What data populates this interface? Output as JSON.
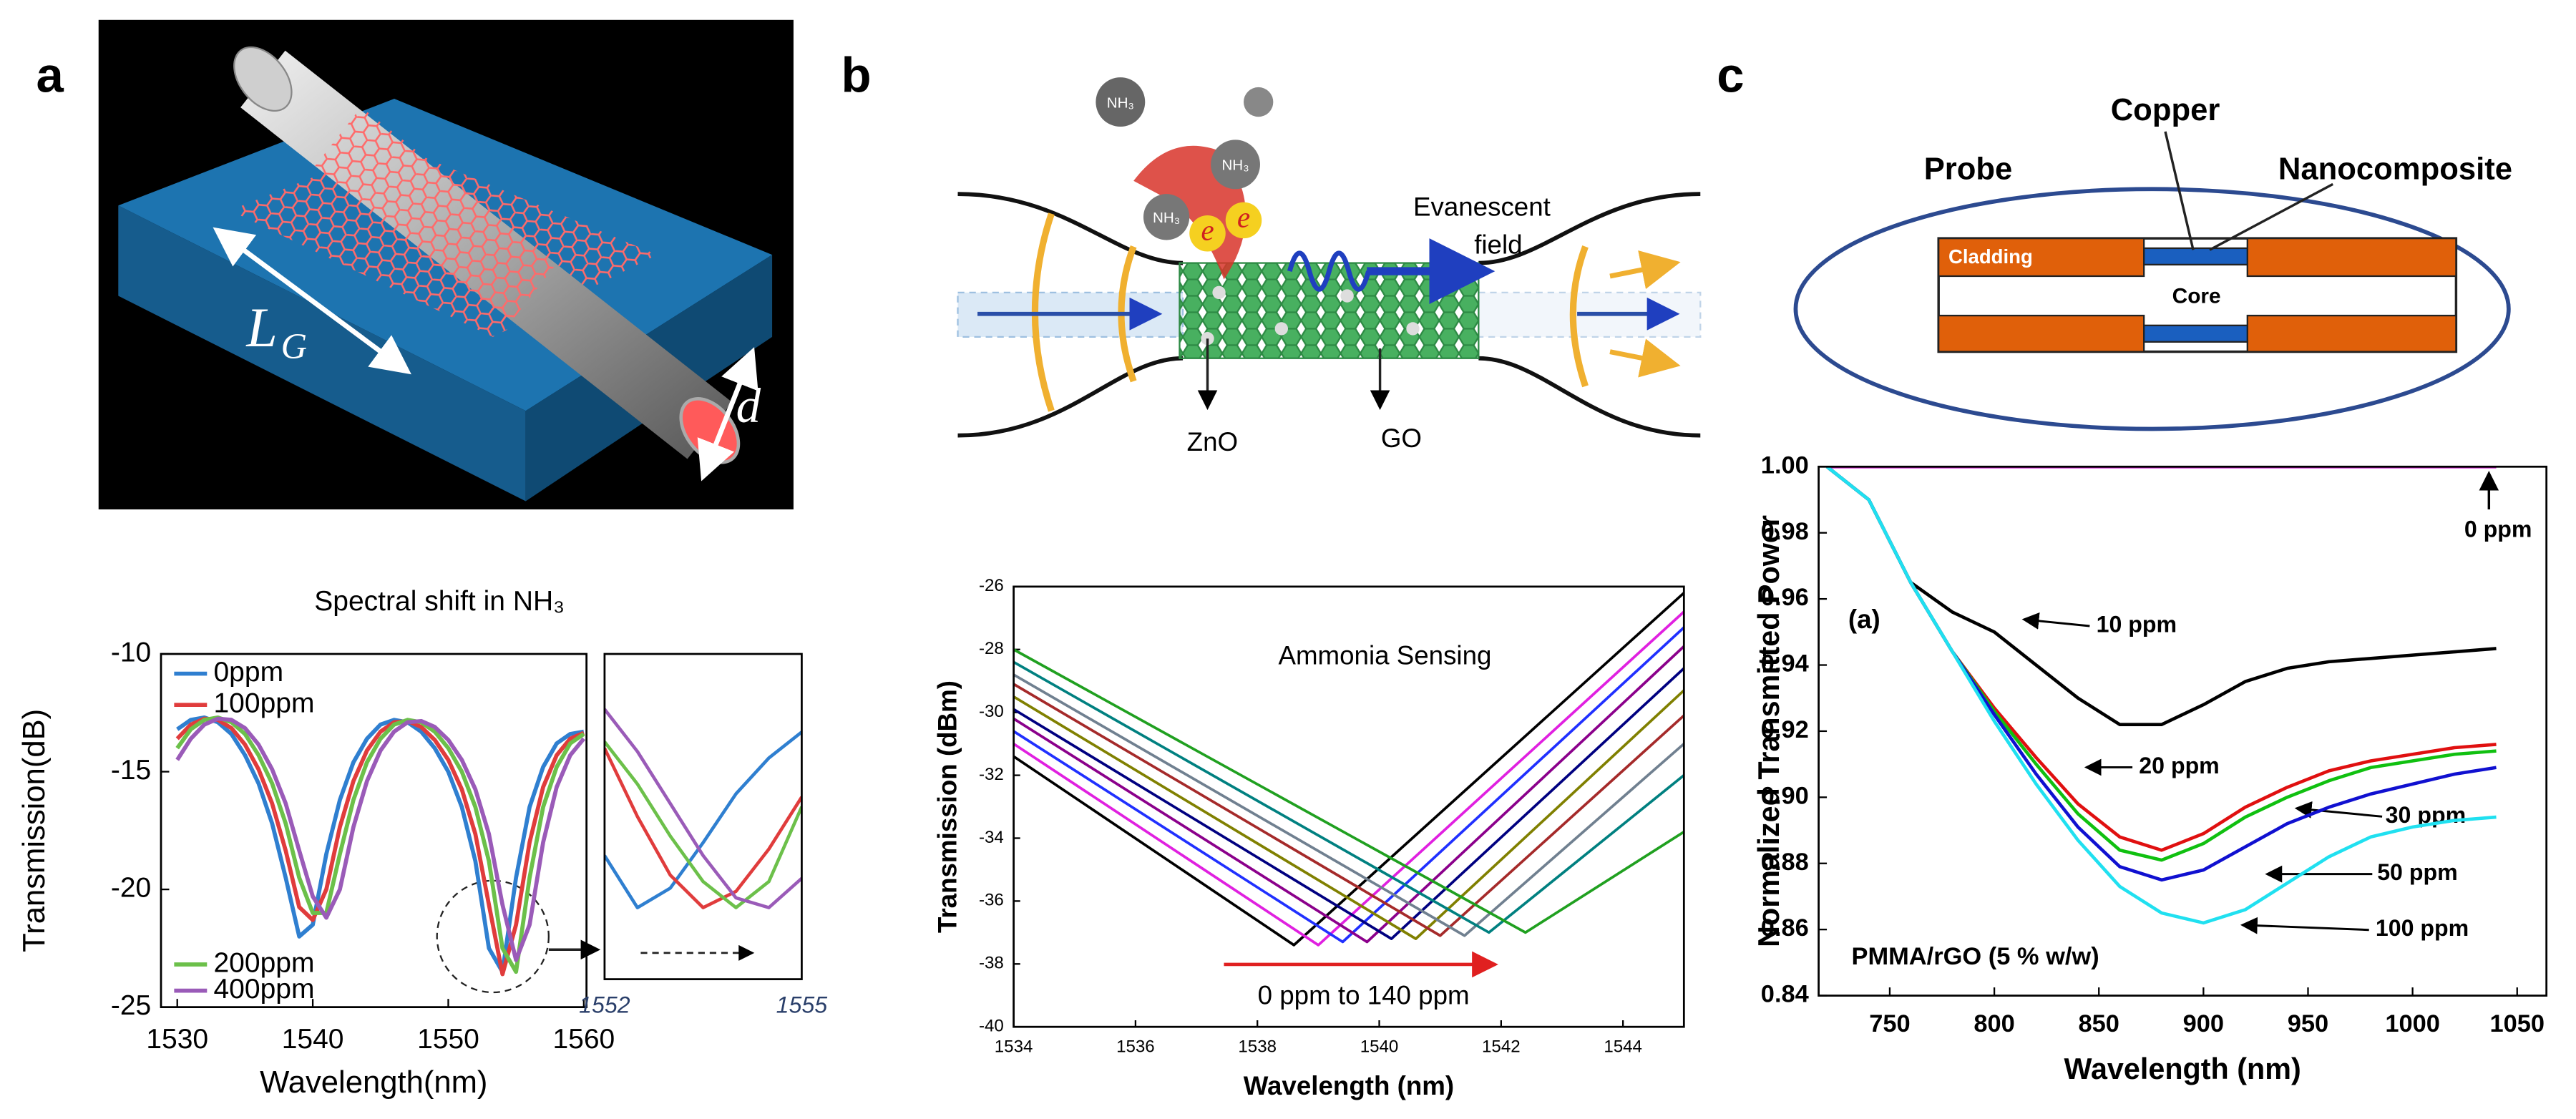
{
  "panel_labels": [
    "a",
    "b",
    "c"
  ],
  "diagram_a": {
    "length_label": "L",
    "length_subscript": "G",
    "diameter_label": "d"
  },
  "diagram_b": {
    "molecule_labels": [
      "NH₃",
      "NH₃",
      "NH₃"
    ],
    "electron_labels": [
      "e",
      "e"
    ],
    "field_label": [
      "Evanescent",
      "field"
    ],
    "zno_label": "ZnO",
    "go_label": "GO"
  },
  "diagram_c": {
    "probe": "Probe",
    "copper": "Copper",
    "nanocomposite": "Nanocomposite",
    "cladding": "Cladding",
    "core": "Core"
  },
  "chart_data": [
    {
      "type": "line",
      "title": "Spectral shift in NH₃",
      "x_label": "Wavelength(nm)",
      "y_label": "Transmission(dB)",
      "x": [
        1530,
        1531,
        1532,
        1533,
        1534,
        1535,
        1536,
        1537,
        1538,
        1539,
        1540,
        1541,
        1542,
        1543,
        1544,
        1545,
        1546,
        1547,
        1548,
        1549,
        1550,
        1551,
        1552,
        1553,
        1554,
        1555,
        1556,
        1557,
        1558,
        1559,
        1560
      ],
      "series": [
        {
          "name": "0ppm",
          "color": "#2f7fd0",
          "values": [
            -13.2,
            -12.8,
            -12.7,
            -12.9,
            -13.4,
            -14.3,
            -15.5,
            -17.2,
            -19.5,
            -22.0,
            -21.5,
            -18.5,
            -16.2,
            -14.6,
            -13.6,
            -13.0,
            -12.8,
            -12.9,
            -13.3,
            -14.0,
            -15.0,
            -16.5,
            -18.8,
            -22.5,
            -23.5,
            -19.5,
            -16.5,
            -14.8,
            -13.8,
            -13.4,
            -13.3
          ]
        },
        {
          "name": "100ppm",
          "color": "#e03c3c",
          "values": [
            -13.6,
            -13.0,
            -12.75,
            -12.8,
            -13.15,
            -13.85,
            -14.9,
            -16.35,
            -18.35,
            -20.75,
            -21.3,
            -20.0,
            -17.35,
            -15.4,
            -14.1,
            -13.3,
            -12.9,
            -12.85,
            -13.1,
            -13.65,
            -14.5,
            -15.75,
            -17.65,
            -20.65,
            -23.6,
            -21.5,
            -18.0,
            -15.65,
            -14.3,
            -13.6,
            -13.35
          ]
        },
        {
          "name": "200ppm",
          "color": "#6cc04a",
          "values": [
            -14.0,
            -13.2,
            -12.8,
            -12.7,
            -12.9,
            -13.4,
            -14.3,
            -15.5,
            -17.2,
            -19.5,
            -21.0,
            -21.0,
            -18.5,
            -16.2,
            -14.6,
            -13.6,
            -13.0,
            -12.8,
            -12.9,
            -13.3,
            -14.0,
            -15.0,
            -16.5,
            -18.8,
            -22.5,
            -23.5,
            -19.5,
            -16.5,
            -14.8,
            -13.8,
            -13.4
          ]
        },
        {
          "name": "400ppm",
          "color": "#9a5bb8",
          "values": [
            -14.5,
            -13.6,
            -13.0,
            -12.75,
            -12.8,
            -13.15,
            -13.85,
            -14.9,
            -16.35,
            -18.35,
            -20.3,
            -21.2,
            -20.0,
            -17.35,
            -15.4,
            -14.1,
            -13.3,
            -12.9,
            -12.85,
            -13.1,
            -13.65,
            -14.5,
            -15.75,
            -17.65,
            -20.65,
            -23.0,
            -21.5,
            -18.0,
            -15.65,
            -14.3,
            -13.6
          ]
        }
      ],
      "xlim": [
        1528.8,
        1560.2
      ],
      "xticks": [
        1530,
        1540,
        1550,
        1560
      ],
      "ylim": [
        -25,
        -10
      ],
      "yticks": [
        -10,
        -15,
        -20,
        -25
      ],
      "grid": false
    },
    {
      "type": "line",
      "x": [
        1552,
        1552.5,
        1553,
        1553.5,
        1554,
        1554.5,
        1555
      ],
      "series": [
        {
          "color": "#2f7fd0",
          "values": [
            -18.2,
            -19.8,
            -19.2,
            -17.8,
            -16.3,
            -15.2,
            -14.4
          ]
        },
        {
          "color": "#e03c3c",
          "values": [
            -14.9,
            -17.0,
            -18.8,
            -19.8,
            -19.3,
            -18.0,
            -16.4
          ]
        },
        {
          "color": "#6cc04a",
          "values": [
            -14.7,
            -16.0,
            -17.6,
            -19.0,
            -19.8,
            -19.0,
            -16.7
          ]
        },
        {
          "color": "#9a5bb8",
          "values": [
            -13.7,
            -15.0,
            -16.6,
            -18.2,
            -19.5,
            -19.8,
            -18.9
          ]
        }
      ],
      "xlim": [
        1552,
        1555
      ],
      "xticks": [
        1552,
        1555
      ],
      "ylim": [
        -22,
        -12
      ],
      "grid": false
    },
    {
      "type": "line",
      "x_label": "Wavelength (nm)",
      "y_label": "Transmission (dBm)",
      "annotations": [
        "Ammonia Sensing",
        "0 ppm to 140 ppm"
      ],
      "series": [
        {
          "color": "#000000",
          "x": [
            1534,
            1538.6,
            1545
          ],
          "values": [
            -31.4,
            -37.4,
            -26.2
          ]
        },
        {
          "color": "#e020e0",
          "x": [
            1534,
            1539.0,
            1545
          ],
          "values": [
            -31.0,
            -37.4,
            -26.8
          ]
        },
        {
          "color": "#2030ff",
          "x": [
            1534,
            1539.4,
            1545
          ],
          "values": [
            -30.6,
            -37.3,
            -27.3
          ]
        },
        {
          "color": "#8b008b",
          "x": [
            1534,
            1539.8,
            1545
          ],
          "values": [
            -30.2,
            -37.3,
            -27.9
          ]
        },
        {
          "color": "#000080",
          "x": [
            1534,
            1540.2,
            1545
          ],
          "values": [
            -29.9,
            -37.2,
            -28.6
          ]
        },
        {
          "color": "#808000",
          "x": [
            1534,
            1540.6,
            1545
          ],
          "values": [
            -29.5,
            -37.2,
            -29.3
          ]
        },
        {
          "color": "#a52a2a",
          "x": [
            1534,
            1541.0,
            1545
          ],
          "values": [
            -29.1,
            -37.1,
            -30.1
          ]
        },
        {
          "color": "#708090",
          "x": [
            1534,
            1541.4,
            1545
          ],
          "values": [
            -28.8,
            -37.1,
            -31.0
          ]
        },
        {
          "color": "#008080",
          "x": [
            1534,
            1541.8,
            1545
          ],
          "values": [
            -28.4,
            -37.0,
            -32.0
          ]
        },
        {
          "color": "#20a020",
          "x": [
            1534,
            1542.4,
            1545
          ],
          "values": [
            -28.0,
            -37.0,
            -33.8
          ]
        }
      ],
      "xlim": [
        1534,
        1545
      ],
      "xticks": [
        1534,
        1536,
        1538,
        1540,
        1542,
        1544
      ],
      "ylim": [
        -40,
        -26
      ],
      "yticks": [
        -26,
        -28,
        -30,
        -32,
        -34,
        -36,
        -38,
        -40
      ],
      "grid": false
    },
    {
      "type": "line",
      "x_label": "Wavelength (nm)",
      "y_label": "Normalized Transmitted Power",
      "annotations": [
        "(a)",
        "PMMA/rGO (5 % w/w)"
      ],
      "x": [
        720,
        740,
        760,
        780,
        800,
        820,
        840,
        860,
        880,
        900,
        920,
        940,
        960,
        980,
        1000,
        1020,
        1040
      ],
      "series": [
        {
          "name": "0 ppm",
          "color": "#d010d0",
          "values": [
            1,
            1,
            1,
            1,
            1,
            1,
            1,
            1,
            1,
            1,
            1,
            1,
            1,
            1,
            1,
            1,
            1
          ]
        },
        {
          "name": "10 ppm",
          "color": "#000000",
          "values": [
            1,
            0.99,
            0.965,
            0.956,
            0.95,
            0.94,
            0.93,
            0.922,
            0.922,
            0.928,
            0.935,
            0.939,
            0.941,
            0.942,
            0.943,
            0.944,
            0.945
          ]
        },
        {
          "name": "20 ppm",
          "color": "#e01010",
          "values": [
            1,
            0.99,
            0.965,
            0.944,
            0.927,
            0.912,
            0.898,
            0.888,
            0.884,
            0.889,
            0.897,
            0.903,
            0.908,
            0.911,
            0.913,
            0.915,
            0.916
          ]
        },
        {
          "name": "30 ppm",
          "color": "#10c010",
          "values": [
            1,
            0.99,
            0.965,
            0.944,
            0.926,
            0.91,
            0.895,
            0.884,
            0.881,
            0.886,
            0.894,
            0.9,
            0.905,
            0.909,
            0.911,
            0.913,
            0.914
          ]
        },
        {
          "name": "50 ppm",
          "color": "#1010d0",
          "values": [
            1,
            0.99,
            0.965,
            0.944,
            0.925,
            0.907,
            0.891,
            0.879,
            0.875,
            0.878,
            0.885,
            0.892,
            0.897,
            0.901,
            0.904,
            0.907,
            0.909
          ]
        },
        {
          "name": "100 ppm",
          "color": "#20e0f0",
          "values": [
            1,
            0.99,
            0.965,
            0.944,
            0.923,
            0.904,
            0.887,
            0.873,
            0.865,
            0.862,
            0.866,
            0.874,
            0.882,
            0.888,
            0.891,
            0.893,
            0.894
          ]
        }
      ],
      "xlim": [
        716,
        1064
      ],
      "xticks": [
        750,
        800,
        850,
        900,
        950,
        1000,
        1050
      ],
      "ylim": [
        0.84,
        1
      ],
      "yticks": [
        {
          "value": 1,
          "label": "1.00"
        },
        0.98,
        0.96,
        0.94,
        0.92,
        {
          "value": 0.9,
          "label": "0.90"
        },
        0.88,
        0.86,
        0.84
      ],
      "grid": false
    }
  ]
}
